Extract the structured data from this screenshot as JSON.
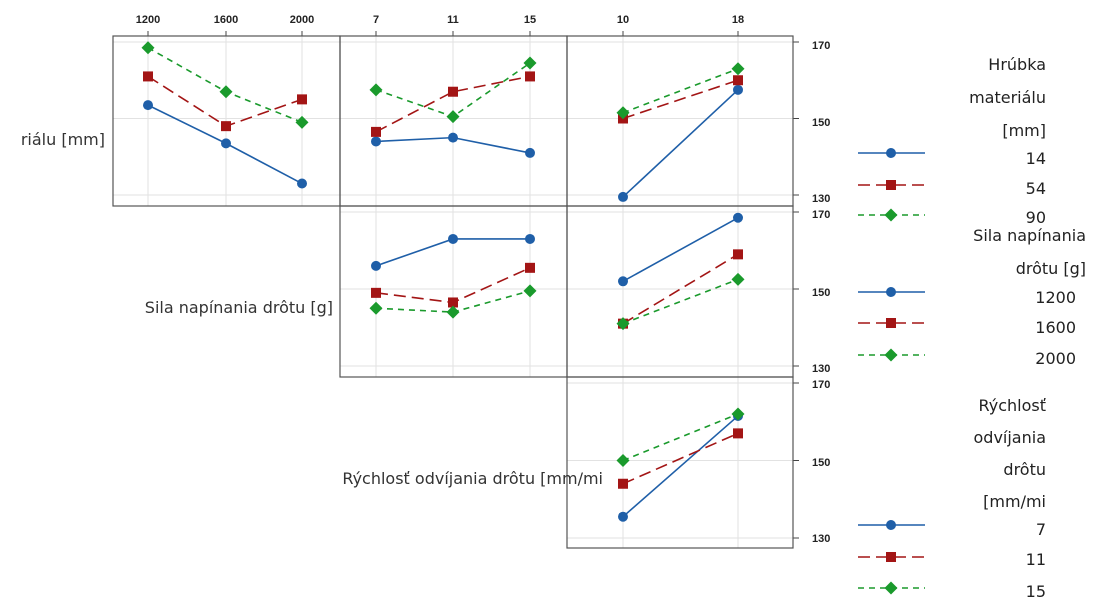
{
  "chart_data": {
    "type": "line",
    "colors": {
      "blue": "#1f5fa8",
      "red": "#a31515",
      "green": "#1a9a2c"
    },
    "factors": [
      {
        "key": "A",
        "name": "Hrúbka materiálu [mm]",
        "row_label": "riálu [mm]",
        "legend_title": [
          "Hrúbka",
          "materiálu",
          "[mm]"
        ],
        "levels": [
          "14",
          "54",
          "90"
        ]
      },
      {
        "key": "B",
        "name": "Sila napínania drôtu [g]",
        "row_label": "Sila napínania drôtu [g]",
        "legend_title": [
          "Sila napínania",
          "drôtu [g]"
        ],
        "levels": [
          "1200",
          "1600",
          "2000"
        ]
      },
      {
        "key": "C",
        "name": "Rýchlosť odvíjania drôtu [mm/mi",
        "row_label": "Rýchlosť odvíjania drôtu [mm/mi",
        "legend_title": [
          "Rýchlosť",
          "odvíjania",
          "drôtu",
          "[mm/mi"
        ],
        "levels": [
          "7",
          "11",
          "15"
        ]
      }
    ],
    "columns": [
      {
        "levels": [
          "1200",
          "1600",
          "2000"
        ]
      },
      {
        "levels": [
          "7",
          "11",
          "15"
        ]
      },
      {
        "levels": [
          "10",
          "18"
        ]
      }
    ],
    "y_ticks": [
      "130",
      "150",
      "170"
    ],
    "ylim": [
      127,
      173
    ],
    "panels": [
      {
        "row": 0,
        "col": 0,
        "series": [
          {
            "level": "14",
            "values": [
              153.5,
              143.5,
              133
            ]
          },
          {
            "level": "54",
            "values": [
              161,
              148,
              155
            ]
          },
          {
            "level": "90",
            "values": [
              168.5,
              157,
              149
            ]
          }
        ]
      },
      {
        "row": 0,
        "col": 1,
        "series": [
          {
            "level": "14",
            "values": [
              144,
              145,
              141
            ]
          },
          {
            "level": "54",
            "values": [
              146.5,
              157,
              161
            ]
          },
          {
            "level": "90",
            "values": [
              157.5,
              150.5,
              164.5
            ]
          }
        ]
      },
      {
        "row": 0,
        "col": 2,
        "series": [
          {
            "level": "14",
            "values": [
              129.5,
              157.5
            ]
          },
          {
            "level": "54",
            "values": [
              150,
              160
            ]
          },
          {
            "level": "90",
            "values": [
              151.5,
              163
            ]
          }
        ]
      },
      {
        "row": 1,
        "col": 1,
        "series": [
          {
            "level": "1200",
            "values": [
              156,
              163,
              163
            ]
          },
          {
            "level": "1600",
            "values": [
              149,
              146.5,
              155.5
            ]
          },
          {
            "level": "2000",
            "values": [
              145,
              144,
              149.5
            ]
          }
        ]
      },
      {
        "row": 1,
        "col": 2,
        "series": [
          {
            "level": "1200",
            "values": [
              152,
              168.5
            ]
          },
          {
            "level": "1600",
            "values": [
              141,
              159
            ]
          },
          {
            "level": "2000",
            "values": [
              141,
              152.5
            ]
          }
        ]
      },
      {
        "row": 2,
        "col": 2,
        "series": [
          {
            "level": "7",
            "values": [
              135.5,
              161.5
            ]
          },
          {
            "level": "11",
            "values": [
              144,
              157
            ]
          },
          {
            "level": "15",
            "values": [
              150,
              162
            ]
          }
        ]
      }
    ]
  }
}
